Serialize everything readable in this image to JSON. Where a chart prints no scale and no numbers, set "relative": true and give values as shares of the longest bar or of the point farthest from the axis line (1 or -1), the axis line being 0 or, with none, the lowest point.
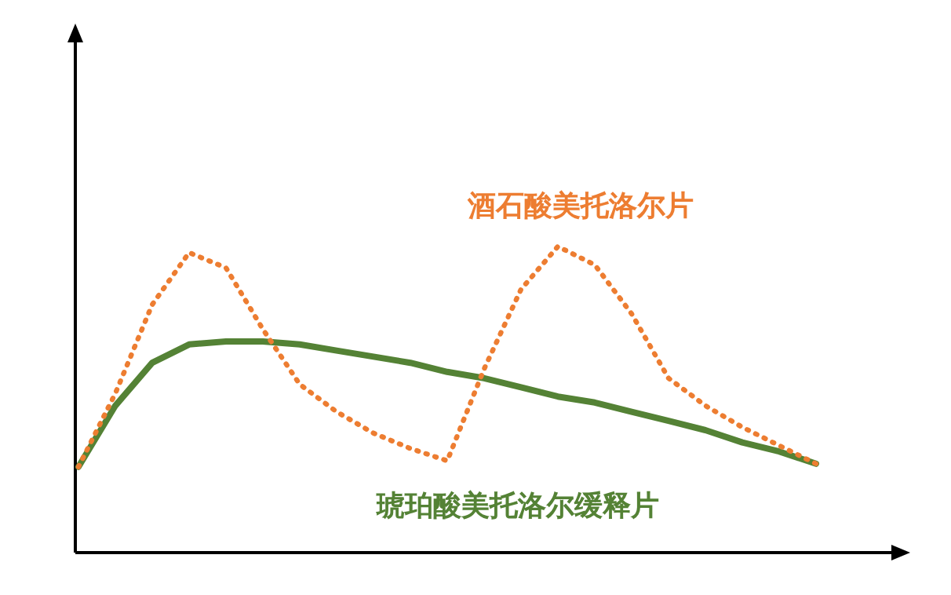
{
  "chart_data": {
    "type": "line",
    "relative": true,
    "legend": false,
    "grid": false,
    "marker": "none",
    "categories": [
      null,
      null,
      null,
      null,
      null,
      null,
      null,
      null,
      null,
      null,
      null,
      null,
      null,
      null,
      null,
      null,
      null,
      null,
      null,
      null,
      null
    ],
    "series": [
      {
        "name": "酒石酸美托洛尔片",
        "color": "#ed7d31",
        "line_style": "dotted",
        "values": [
          0.28,
          0.52,
          0.81,
          0.98,
          0.93,
          0.73,
          0.55,
          0.46,
          0.39,
          0.34,
          0.3,
          0.6,
          0.86,
          1.0,
          0.94,
          0.78,
          0.57,
          0.48,
          0.41,
          0.35,
          0.29
        ]
      },
      {
        "name": "琥珀酸美托洛尔缓释片",
        "color": "#548235",
        "line_style": "solid",
        "values": [
          0.28,
          0.48,
          0.62,
          0.68,
          0.69,
          0.69,
          0.68,
          0.66,
          0.64,
          0.62,
          0.59,
          0.57,
          0.54,
          0.51,
          0.49,
          0.46,
          0.43,
          0.4,
          0.36,
          0.33,
          0.29
        ]
      }
    ]
  }
}
